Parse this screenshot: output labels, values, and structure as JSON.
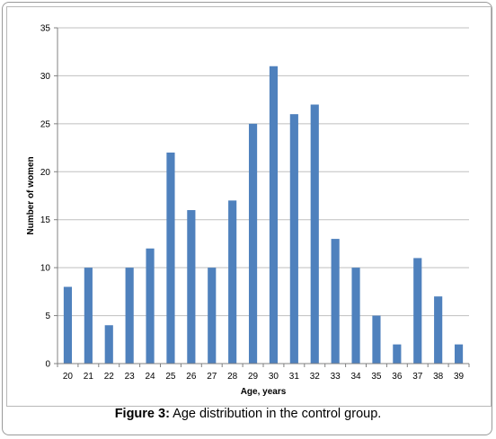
{
  "caption": {
    "label": "Figure 3:",
    "text": " Age distribution in the control group."
  },
  "chart_data": {
    "type": "bar",
    "title": "",
    "xlabel": "Age, years",
    "ylabel": "Number of women",
    "categories": [
      "20",
      "21",
      "22",
      "23",
      "24",
      "25",
      "26",
      "27",
      "28",
      "29",
      "30",
      "31",
      "32",
      "33",
      "34",
      "35",
      "36",
      "37",
      "38",
      "39"
    ],
    "values": [
      8,
      10,
      4,
      10,
      12,
      22,
      16,
      10,
      17,
      25,
      31,
      26,
      27,
      13,
      10,
      5,
      2,
      11,
      7,
      2
    ],
    "ylim": [
      0,
      35
    ],
    "yticks": [
      0,
      5,
      10,
      15,
      20,
      25,
      30,
      35
    ],
    "grid": "horizontal",
    "legend": "none",
    "bar_color": "#4f81bd",
    "grid_color": "#bfbfbf"
  }
}
